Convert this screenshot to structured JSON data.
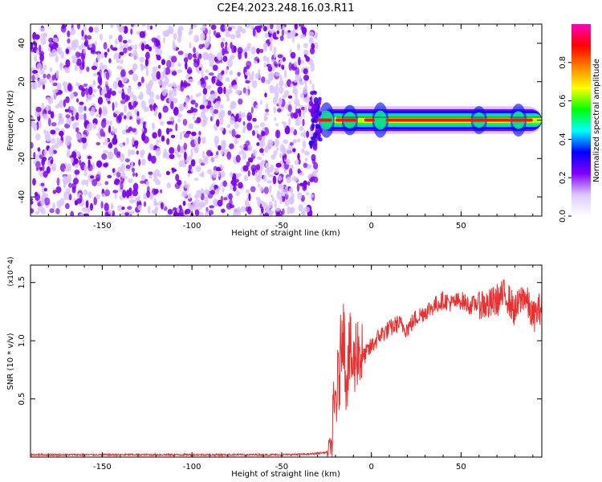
{
  "title": "C2E4.2023.248.16.03.R11",
  "chart_data": [
    {
      "type": "heatmap",
      "xlabel": "Height of straight line (km)",
      "ylabel": "Frequency (Hz)",
      "xlim": [
        -190,
        95
      ],
      "ylim": [
        -50,
        50
      ],
      "xticks": [
        -150,
        -100,
        -50,
        0,
        50
      ],
      "yticks": [
        -40,
        -20,
        0,
        20,
        40
      ],
      "noise_region": {
        "x_range": [
          -190,
          -32
        ],
        "y_range": [
          -50,
          50
        ],
        "level": 0.15
      },
      "band": {
        "center_frequency": 0,
        "x_range": [
          -32,
          95
        ],
        "half_width_hz": 3,
        "peak_level": 0.9
      },
      "colorbar": {
        "label": "Normalized spectral amplitude",
        "range": [
          0.0,
          1.0
        ],
        "ticks": [
          0.0,
          0.2,
          0.4,
          0.6,
          0.8
        ],
        "stops": [
          "#ffffff",
          "#dcc8ff",
          "#8000ff",
          "#0000ff",
          "#00ffff",
          "#00ff00",
          "#ffff00",
          "#ff8000",
          "#ff0000",
          "#ff00c0"
        ]
      },
      "colors": {
        "noise": "#7a00ee",
        "noise_light": "#d8c0ff"
      },
      "grid": false,
      "legend": "none"
    },
    {
      "type": "line",
      "xlabel": "Height of straight line (km)",
      "ylabel": "SNR (10 * v/v)",
      "multiplier_label": "(x10^4)",
      "xlim": [
        -190,
        95
      ],
      "ylim": [
        0,
        1.65
      ],
      "xticks": [
        -150,
        -100,
        -50,
        0,
        50
      ],
      "yticks": [
        0.5,
        1.0,
        1.5
      ],
      "series": [
        {
          "color": "#e83030",
          "x": [
            -190,
            -150,
            -100,
            -50,
            -35,
            -25,
            -22,
            -20,
            -18,
            -16,
            -14,
            -12,
            -10,
            -8,
            -5,
            0,
            5,
            10,
            15,
            20,
            25,
            30,
            35,
            40,
            45,
            50,
            55,
            60,
            65,
            70,
            75,
            80,
            85,
            90,
            95
          ],
          "y": [
            0.02,
            0.02,
            0.02,
            0.02,
            0.025,
            0.04,
            0.12,
            0.5,
            0.65,
            1.2,
            0.7,
            0.9,
            0.75,
            0.95,
            0.85,
            0.95,
            1.05,
            1.1,
            1.15,
            1.1,
            1.2,
            1.25,
            1.3,
            1.35,
            1.32,
            1.35,
            1.3,
            1.33,
            1.3,
            1.35,
            1.4,
            1.25,
            1.4,
            1.2,
            1.3
          ],
          "noise": 0.08
        }
      ],
      "grid": false,
      "legend": "none"
    }
  ]
}
